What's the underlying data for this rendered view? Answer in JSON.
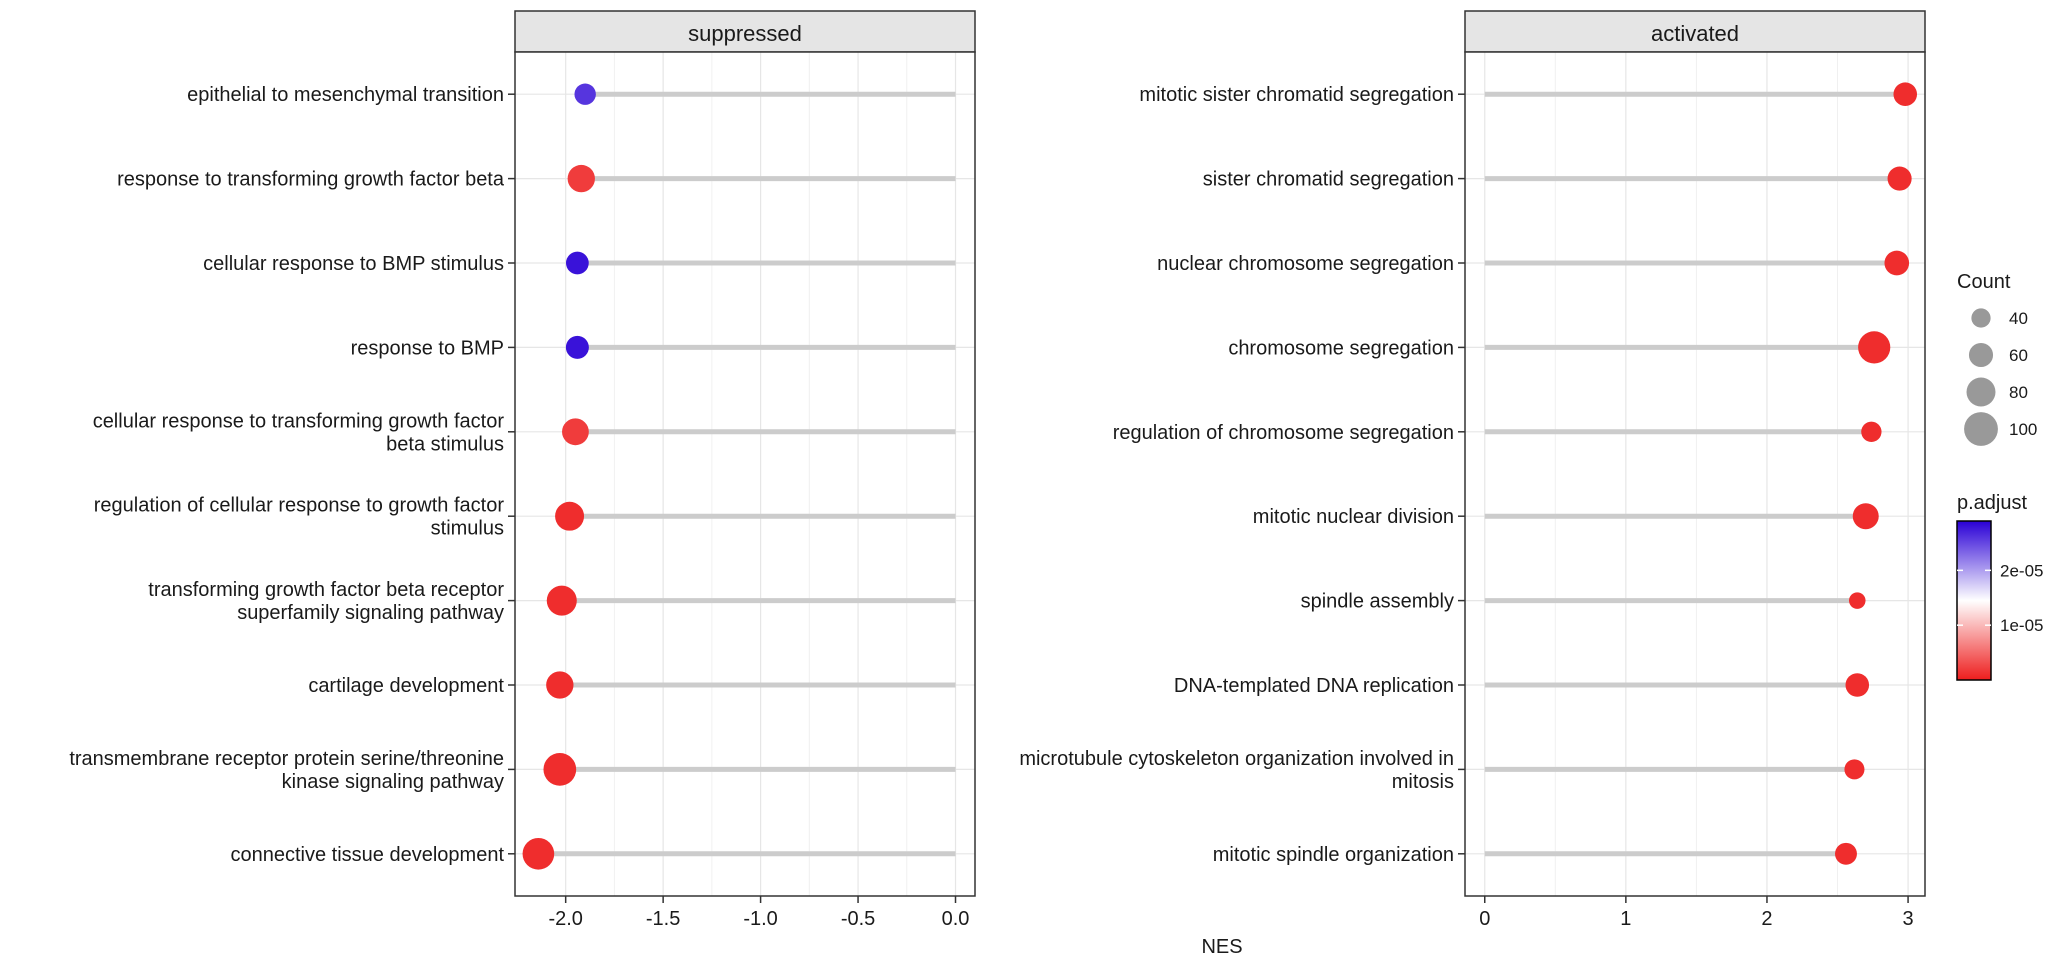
{
  "chart_data": [
    {
      "type": "lollipop",
      "panel_title": "suppressed",
      "categories": [
        [
          "epithelial to mesenchymal transition"
        ],
        [
          "response to transforming growth factor beta"
        ],
        [
          "cellular response to BMP stimulus"
        ],
        [
          "response to BMP"
        ],
        [
          "cellular response to transforming growth factor",
          "beta stimulus"
        ],
        [
          "regulation of cellular response to growth factor",
          "stimulus"
        ],
        [
          "transforming growth factor beta receptor",
          "superfamily signaling pathway"
        ],
        [
          "cartilage development"
        ],
        [
          "transmembrane receptor protein serine/threonine",
          "kinase signaling pathway"
        ],
        [
          "connective tissue development"
        ]
      ],
      "nes": [
        -1.9,
        -1.92,
        -1.94,
        -1.94,
        -1.95,
        -1.98,
        -2.02,
        -2.03,
        -2.03,
        -2.14
      ],
      "count": [
        40,
        62,
        45,
        46,
        60,
        68,
        72,
        62,
        82,
        78
      ],
      "p_adjust": [
        2.6e-05,
        2e-06,
        2.8e-05,
        2.8e-05,
        2e-06,
        1e-06,
        1e-06,
        1e-06,
        1e-06,
        1e-06
      ],
      "xlim": [
        -2.26,
        0.1
      ],
      "ticks": [
        -2.0,
        -1.5,
        -1.0,
        -0.5,
        0.0
      ],
      "tick_labels": [
        "-2.0",
        "-1.5",
        "-1.0",
        "-0.5",
        "0.0"
      ]
    },
    {
      "type": "lollipop",
      "panel_title": "activated",
      "categories": [
        [
          "mitotic sister chromatid segregation"
        ],
        [
          "sister chromatid segregation"
        ],
        [
          "nuclear chromosome segregation"
        ],
        [
          "chromosome segregation"
        ],
        [
          "regulation of chromosome segregation"
        ],
        [
          "mitotic nuclear division"
        ],
        [
          "spindle assembly"
        ],
        [
          "DNA-templated DNA replication"
        ],
        [
          "microtubule cytoskeleton organization involved in",
          "mitosis"
        ],
        [
          "mitotic spindle organization"
        ]
      ],
      "nes": [
        2.98,
        2.94,
        2.92,
        2.76,
        2.74,
        2.7,
        2.64,
        2.64,
        2.62,
        2.56
      ],
      "count": [
        48,
        50,
        52,
        80,
        36,
        57,
        22,
        48,
        35,
        42
      ],
      "p_adjust": [
        1e-06,
        1e-06,
        1e-06,
        1e-06,
        1e-06,
        1e-06,
        1e-06,
        1e-06,
        1e-06,
        1e-06
      ],
      "xlim": [
        -0.14,
        3.12
      ],
      "ticks": [
        0,
        1,
        2,
        3
      ],
      "tick_labels": [
        "0",
        "1",
        "2",
        "3"
      ]
    }
  ],
  "xlabel": "NES",
  "legend": {
    "size_title": "Count",
    "size_breaks": [
      40,
      60,
      80,
      100
    ],
    "size_labels": [
      "40",
      "60",
      "80",
      "100"
    ],
    "color_title": "p.adjust",
    "color_breaks": [
      2e-05,
      1e-05
    ],
    "color_labels": [
      "2e-05",
      "1e-05"
    ],
    "color_range": [
      0,
      2.9e-05
    ],
    "color_low": "#ee1d1d",
    "color_mid": "#ffffff",
    "color_high": "#2a00d6"
  }
}
